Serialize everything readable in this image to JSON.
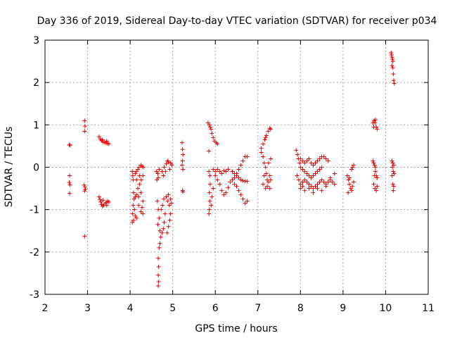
{
  "chart_data": {
    "type": "scatter",
    "title": "Day 336 of 2019, Sidereal Day-to-day VTEC variation (SDTVAR) for receiver p034",
    "xlabel": "GPS time / hours",
    "ylabel": "SDTVAR / TECUs",
    "xlim": [
      2,
      11
    ],
    "ylim": [
      -3,
      3
    ],
    "xticks": [
      "2",
      "3",
      "4",
      "5",
      "6",
      "7",
      "8",
      "9",
      "10",
      "11"
    ],
    "yticks": [
      "-3",
      "-2",
      "-1",
      "0",
      "1",
      "2",
      "3"
    ],
    "grid": true,
    "marker": "+",
    "color": "#e00000",
    "series": [
      {
        "name": "p034 SDTVAR",
        "points": [
          [
            2.57,
            0.53
          ],
          [
            2.59,
            0.52
          ],
          [
            2.58,
            -0.2
          ],
          [
            2.57,
            -0.36
          ],
          [
            2.59,
            -0.42
          ],
          [
            2.58,
            -0.62
          ],
          [
            2.93,
            1.1
          ],
          [
            2.94,
            0.97
          ],
          [
            2.93,
            0.85
          ],
          [
            2.92,
            -0.42
          ],
          [
            2.94,
            -0.47
          ],
          [
            2.93,
            -0.56
          ],
          [
            2.95,
            -0.52
          ],
          [
            2.93,
            -1.63
          ],
          [
            3.27,
            0.72
          ],
          [
            3.3,
            0.66
          ],
          [
            3.33,
            0.63
          ],
          [
            3.36,
            0.6
          ],
          [
            3.4,
            0.59
          ],
          [
            3.43,
            0.58
          ],
          [
            3.47,
            0.56
          ],
          [
            3.5,
            0.55
          ],
          [
            3.35,
            0.65
          ],
          [
            3.45,
            0.62
          ],
          [
            3.27,
            -0.7
          ],
          [
            3.29,
            -0.76
          ],
          [
            3.31,
            -0.82
          ],
          [
            3.33,
            -0.88
          ],
          [
            3.35,
            -0.92
          ],
          [
            3.38,
            -0.9
          ],
          [
            3.41,
            -0.86
          ],
          [
            3.44,
            -0.83
          ],
          [
            3.47,
            -0.8
          ],
          [
            3.5,
            -0.82
          ],
          [
            3.36,
            -0.78
          ],
          [
            3.45,
            -0.9
          ],
          [
            4.05,
            -0.1
          ],
          [
            4.06,
            -0.2
          ],
          [
            4.07,
            -0.3
          ],
          [
            4.08,
            -0.6
          ],
          [
            4.09,
            -0.75
          ],
          [
            4.07,
            -0.9
          ],
          [
            4.06,
            -1.1
          ],
          [
            4.05,
            -1.3
          ],
          [
            4.08,
            -1.25
          ],
          [
            4.1,
            -1.0
          ],
          [
            4.12,
            -0.15
          ],
          [
            4.15,
            -0.1
          ],
          [
            4.18,
            -0.05
          ],
          [
            4.21,
            0.0
          ],
          [
            4.25,
            0.05
          ],
          [
            4.28,
            0.02
          ],
          [
            4.31,
            0.0
          ],
          [
            4.15,
            -0.3
          ],
          [
            4.18,
            -0.5
          ],
          [
            4.22,
            -0.4
          ],
          [
            4.26,
            -0.3
          ],
          [
            4.3,
            -0.2
          ],
          [
            4.12,
            -0.7
          ],
          [
            4.15,
            -0.65
          ],
          [
            4.2,
            -0.7
          ],
          [
            4.25,
            -0.6
          ],
          [
            4.2,
            -0.9
          ],
          [
            4.25,
            -1.05
          ],
          [
            4.28,
            -0.95
          ],
          [
            4.3,
            -1.1
          ],
          [
            4.15,
            -1.2
          ],
          [
            4.12,
            -1.15
          ],
          [
            4.3,
            -0.8
          ],
          [
            4.22,
            -0.2
          ],
          [
            4.62,
            -0.1
          ],
          [
            4.65,
            -0.15
          ],
          [
            4.68,
            -0.05
          ],
          [
            4.63,
            -0.3
          ],
          [
            4.66,
            -0.25
          ],
          [
            4.64,
            -0.8
          ],
          [
            4.66,
            -1.0
          ],
          [
            4.68,
            -1.2
          ],
          [
            4.65,
            -1.35
          ],
          [
            4.7,
            -1.5
          ],
          [
            4.72,
            -1.65
          ],
          [
            4.75,
            -1.55
          ],
          [
            4.78,
            -1.45
          ],
          [
            4.8,
            -1.3
          ],
          [
            4.73,
            -1.0
          ],
          [
            4.76,
            -0.9
          ],
          [
            4.79,
            -0.75
          ],
          [
            4.82,
            -1.1
          ],
          [
            4.7,
            -1.8
          ],
          [
            4.68,
            -1.9
          ],
          [
            4.66,
            -2.15
          ],
          [
            4.67,
            -2.35
          ],
          [
            4.66,
            -2.55
          ],
          [
            4.67,
            -2.7
          ],
          [
            4.66,
            -2.8
          ],
          [
            4.75,
            -0.1
          ],
          [
            4.8,
            0.0
          ],
          [
            4.85,
            0.08
          ],
          [
            4.9,
            0.12
          ],
          [
            4.95,
            0.1
          ],
          [
            4.98,
            0.05
          ],
          [
            4.78,
            -0.2
          ],
          [
            4.83,
            -0.1
          ],
          [
            4.88,
            0.15
          ],
          [
            4.93,
            -0.05
          ],
          [
            4.85,
            -0.7
          ],
          [
            4.88,
            -0.8
          ],
          [
            4.9,
            -0.65
          ],
          [
            4.92,
            -0.9
          ],
          [
            4.95,
            -1.1
          ],
          [
            4.93,
            -1.25
          ],
          [
            4.9,
            -1.4
          ],
          [
            4.87,
            -1.55
          ],
          [
            4.95,
            -0.75
          ],
          [
            4.97,
            -0.85
          ],
          [
            5.22,
            0.58
          ],
          [
            5.23,
            0.42
          ],
          [
            5.24,
            0.3
          ],
          [
            5.23,
            0.15
          ],
          [
            5.22,
            0.05
          ],
          [
            5.24,
            -0.05
          ],
          [
            5.23,
            -0.55
          ],
          [
            5.24,
            -0.58
          ],
          [
            5.83,
            1.05
          ],
          [
            5.86,
            1.0
          ],
          [
            5.88,
            0.95
          ],
          [
            5.9,
            0.9
          ],
          [
            5.92,
            0.8
          ],
          [
            5.95,
            0.7
          ],
          [
            5.98,
            0.62
          ],
          [
            6.02,
            0.58
          ],
          [
            6.05,
            0.55
          ],
          [
            5.85,
            0.38
          ],
          [
            5.85,
            -0.1
          ],
          [
            5.87,
            -0.2
          ],
          [
            5.88,
            -0.4
          ],
          [
            5.86,
            -0.6
          ],
          [
            5.87,
            -0.8
          ],
          [
            5.86,
            -1.0
          ],
          [
            5.85,
            -1.1
          ],
          [
            5.9,
            -0.9
          ],
          [
            5.92,
            -0.7
          ],
          [
            5.95,
            -0.5
          ],
          [
            5.95,
            -0.05
          ],
          [
            6.0,
            -0.1
          ],
          [
            6.05,
            -0.05
          ],
          [
            6.1,
            -0.1
          ],
          [
            6.15,
            -0.15
          ],
          [
            6.2,
            -0.08
          ],
          [
            6.25,
            -0.1
          ],
          [
            6.3,
            -0.05
          ],
          [
            6.0,
            -0.2
          ],
          [
            6.05,
            -0.3
          ],
          [
            6.1,
            -0.4
          ],
          [
            6.15,
            -0.55
          ],
          [
            6.2,
            -0.65
          ],
          [
            6.25,
            -0.6
          ],
          [
            6.3,
            -0.48
          ],
          [
            6.35,
            -0.35
          ],
          [
            6.4,
            -0.3
          ],
          [
            6.45,
            -0.25
          ],
          [
            6.5,
            -0.15
          ],
          [
            6.55,
            -0.05
          ],
          [
            6.6,
            0.05
          ],
          [
            6.65,
            0.15
          ],
          [
            6.7,
            0.25
          ],
          [
            6.75,
            0.25
          ],
          [
            6.4,
            -0.1
          ],
          [
            6.45,
            -0.15
          ],
          [
            6.5,
            -0.2
          ],
          [
            6.55,
            -0.25
          ],
          [
            6.6,
            -0.3
          ],
          [
            6.65,
            -0.32
          ],
          [
            6.7,
            -0.33
          ],
          [
            6.75,
            -0.33
          ],
          [
            6.45,
            -0.4
          ],
          [
            6.5,
            -0.45
          ],
          [
            6.55,
            -0.55
          ],
          [
            6.6,
            -0.65
          ],
          [
            6.65,
            -0.75
          ],
          [
            6.7,
            -0.85
          ],
          [
            6.75,
            -0.8
          ],
          [
            7.08,
            0.45
          ],
          [
            7.12,
            0.55
          ],
          [
            7.16,
            0.65
          ],
          [
            7.2,
            0.75
          ],
          [
            7.24,
            0.85
          ],
          [
            7.28,
            0.92
          ],
          [
            7.3,
            0.9
          ],
          [
            7.18,
            0.7
          ],
          [
            7.08,
            0.35
          ],
          [
            7.12,
            0.25
          ],
          [
            7.15,
            0.1
          ],
          [
            7.18,
            0.0
          ],
          [
            7.2,
            -0.15
          ],
          [
            7.22,
            -0.3
          ],
          [
            7.25,
            -0.35
          ],
          [
            7.28,
            -0.2
          ],
          [
            7.3,
            0.2
          ],
          [
            7.15,
            -0.2
          ],
          [
            7.12,
            -0.4
          ],
          [
            7.18,
            -0.5
          ],
          [
            7.22,
            -0.45
          ],
          [
            7.28,
            -0.5
          ],
          [
            7.25,
            0.1
          ],
          [
            7.3,
            -0.3
          ],
          [
            7.9,
            0.4
          ],
          [
            7.93,
            0.3
          ],
          [
            7.95,
            0.2
          ],
          [
            7.98,
            0.1
          ],
          [
            8.0,
            0.0
          ],
          [
            8.05,
            -0.05
          ],
          [
            8.1,
            -0.1
          ],
          [
            8.15,
            -0.15
          ],
          [
            8.2,
            -0.2
          ],
          [
            8.25,
            -0.25
          ],
          [
            8.3,
            -0.2
          ],
          [
            8.35,
            -0.15
          ],
          [
            8.4,
            -0.1
          ],
          [
            8.45,
            -0.05
          ],
          [
            8.5,
            0.0
          ],
          [
            7.92,
            -0.2
          ],
          [
            7.96,
            -0.3
          ],
          [
            8.0,
            -0.4
          ],
          [
            8.05,
            -0.35
          ],
          [
            8.1,
            -0.3
          ],
          [
            8.15,
            -0.35
          ],
          [
            8.2,
            -0.4
          ],
          [
            8.25,
            -0.45
          ],
          [
            8.3,
            -0.5
          ],
          [
            8.35,
            -0.45
          ],
          [
            8.4,
            -0.4
          ],
          [
            8.45,
            -0.35
          ],
          [
            8.5,
            -0.3
          ],
          [
            8.55,
            -0.35
          ],
          [
            8.6,
            -0.4
          ],
          [
            8.65,
            -0.35
          ],
          [
            8.7,
            -0.3
          ],
          [
            8.75,
            -0.35
          ],
          [
            8.8,
            -0.4
          ],
          [
            8.0,
            0.2
          ],
          [
            8.05,
            0.15
          ],
          [
            8.1,
            0.1
          ],
          [
            8.15,
            0.15
          ],
          [
            8.2,
            0.2
          ],
          [
            8.25,
            0.1
          ],
          [
            8.3,
            0.05
          ],
          [
            8.35,
            0.1
          ],
          [
            8.4,
            0.15
          ],
          [
            8.45,
            0.2
          ],
          [
            8.5,
            0.25
          ],
          [
            8.55,
            0.25
          ],
          [
            8.6,
            0.2
          ],
          [
            8.65,
            0.15
          ],
          [
            8.0,
            -0.5
          ],
          [
            8.05,
            -0.45
          ],
          [
            8.1,
            -0.55
          ],
          [
            8.2,
            -0.5
          ],
          [
            8.3,
            -0.6
          ],
          [
            8.4,
            -0.5
          ],
          [
            8.5,
            -0.55
          ],
          [
            8.6,
            -0.45
          ],
          [
            8.7,
            -0.25
          ],
          [
            8.8,
            -0.15
          ],
          [
            9.1,
            -0.2
          ],
          [
            9.13,
            -0.3
          ],
          [
            9.15,
            -0.4
          ],
          [
            9.18,
            -0.5
          ],
          [
            9.2,
            -0.55
          ],
          [
            9.22,
            -0.45
          ],
          [
            9.25,
            -0.35
          ],
          [
            9.12,
            -0.6
          ],
          [
            9.15,
            -0.25
          ],
          [
            9.2,
            -0.05
          ],
          [
            9.25,
            0.05
          ],
          [
            9.22,
            0.0
          ],
          [
            9.7,
            1.05
          ],
          [
            9.73,
            1.1
          ],
          [
            9.75,
            1.05
          ],
          [
            9.78,
            0.95
          ],
          [
            9.8,
            0.9
          ],
          [
            9.72,
            0.95
          ],
          [
            9.76,
            1.12
          ],
          [
            9.7,
            0.15
          ],
          [
            9.72,
            0.1
          ],
          [
            9.74,
            0.05
          ],
          [
            9.76,
            -0.1
          ],
          [
            9.78,
            -0.2
          ],
          [
            9.8,
            -0.25
          ],
          [
            9.72,
            -0.4
          ],
          [
            9.75,
            -0.5
          ],
          [
            9.78,
            -0.55
          ],
          [
            9.8,
            -0.45
          ],
          [
            9.74,
            -0.2
          ],
          [
            9.76,
            0.0
          ],
          [
            10.13,
            2.7
          ],
          [
            10.14,
            2.65
          ],
          [
            10.15,
            2.6
          ],
          [
            10.16,
            2.55
          ],
          [
            10.17,
            2.5
          ],
          [
            10.15,
            2.4
          ],
          [
            10.17,
            2.35
          ],
          [
            10.18,
            2.2
          ],
          [
            10.19,
            2.05
          ],
          [
            10.2,
            1.98
          ],
          [
            10.15,
            0.15
          ],
          [
            10.17,
            0.1
          ],
          [
            10.19,
            0.05
          ],
          [
            10.16,
            0.0
          ],
          [
            10.18,
            -0.1
          ],
          [
            10.2,
            -0.15
          ],
          [
            10.15,
            -0.2
          ],
          [
            10.17,
            -0.4
          ],
          [
            10.19,
            -0.45
          ],
          [
            10.18,
            -0.55
          ]
        ]
      }
    ]
  }
}
